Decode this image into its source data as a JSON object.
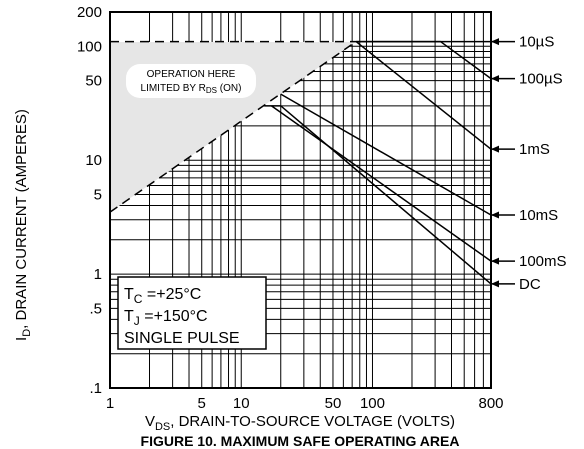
{
  "chart_data": {
    "type": "line",
    "title": "",
    "caption": "FIGURE 10. MAXIMUM SAFE OPERATING AREA",
    "xlabel": {
      "main": "V",
      "sub": "DS",
      "rest": ", DRAIN-TO-SOURCE VOLTAGE (VOLTS)"
    },
    "ylabel": {
      "main": "I",
      "sub": "D",
      "rest": ", DRAIN CURRENT (AMPERES)"
    },
    "x_scale": "log",
    "y_scale": "log",
    "xlim": [
      1,
      800
    ],
    "ylim": [
      0.1,
      200
    ],
    "grid": true,
    "x_ticks": [
      {
        "v": 1,
        "label": "1"
      },
      {
        "v": 5,
        "label": "5"
      },
      {
        "v": 10,
        "label": "10"
      },
      {
        "v": 50,
        "label": "50"
      },
      {
        "v": 100,
        "label": "100"
      },
      {
        "v": 800,
        "label": "800"
      }
    ],
    "y_ticks": [
      {
        "v": 0.1,
        "label": ".1"
      },
      {
        "v": 0.5,
        "label": ".5"
      },
      {
        "v": 1,
        "label": "1"
      },
      {
        "v": 5,
        "label": "5"
      },
      {
        "v": 10,
        "label": "10"
      },
      {
        "v": 50,
        "label": "50"
      },
      {
        "v": 100,
        "label": "100"
      },
      {
        "v": 200,
        "label": "200"
      }
    ],
    "series": [
      {
        "name": "10µS",
        "points": [
          [
            1,
            110
          ],
          [
            800,
            110
          ]
        ]
      },
      {
        "name": "100µS",
        "points": [
          [
            1,
            110
          ],
          [
            330,
            110
          ],
          [
            800,
            52
          ]
        ]
      },
      {
        "name": "1mS",
        "points": [
          [
            75,
            110
          ],
          [
            800,
            12.5
          ]
        ]
      },
      {
        "name": "10mS",
        "points": [
          [
            20,
            38
          ],
          [
            800,
            3.3
          ]
        ]
      },
      {
        "name": "100mS",
        "points": [
          [
            17,
            30
          ],
          [
            800,
            1.3
          ]
        ]
      },
      {
        "name": "DC",
        "points": [
          [
            15,
            30
          ],
          [
            20,
            30
          ],
          [
            800,
            0.82
          ]
        ]
      }
    ],
    "rds_limit_line": [
      [
        1,
        3.5
      ],
      [
        75,
        110
      ]
    ],
    "annotations": {
      "rds_line1": "OPERATION HERE",
      "rds_line2_pre": "LIMITED BY R",
      "rds_line2_sub": "DS",
      "rds_line2_post": " (ON)",
      "tc_pre": "T",
      "tc_sub": "C",
      "tc_post": " =+25°C",
      "tj_pre": "T",
      "tj_sub": "J",
      "tj_post": " =+150°C",
      "pulse": "SINGLE PULSE"
    }
  }
}
